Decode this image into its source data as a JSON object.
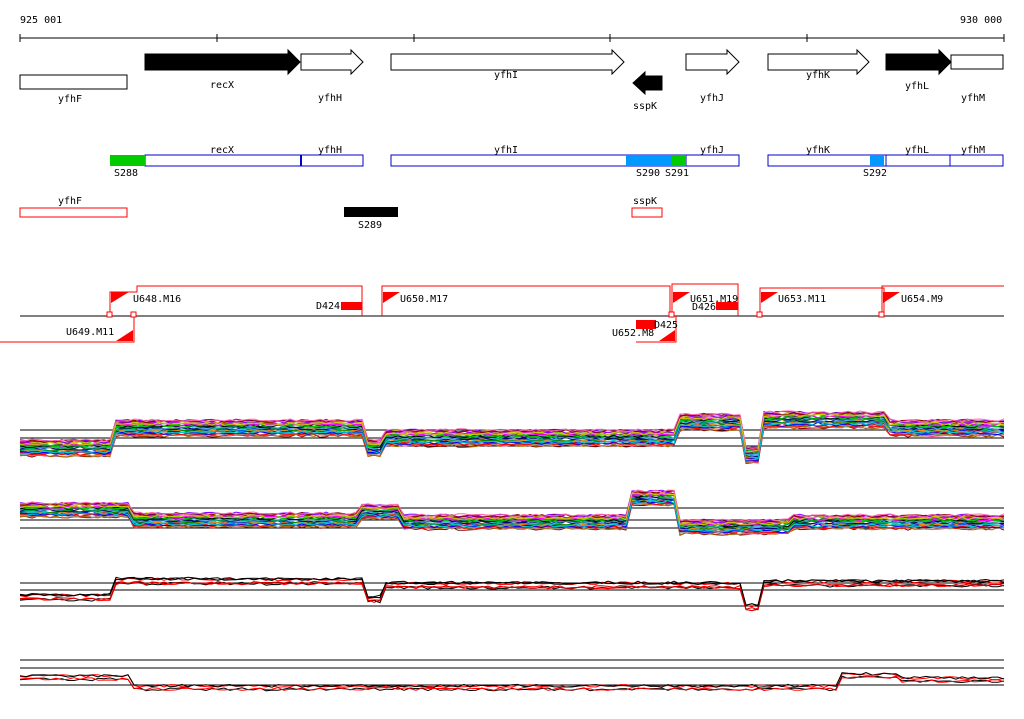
{
  "coords": {
    "start": "925 001",
    "end": "930 000"
  },
  "genes_top": [
    {
      "id": "yfhF",
      "label": "yfhF",
      "fill": "white",
      "dir": "none"
    },
    {
      "id": "recX",
      "label": "recX",
      "fill": "black",
      "dir": "right"
    },
    {
      "id": "yfhH",
      "label": "yfhH",
      "fill": "white",
      "dir": "right"
    },
    {
      "id": "yfhI",
      "label": "yfhI",
      "fill": "white",
      "dir": "right"
    },
    {
      "id": "sspK",
      "label": "sspK",
      "fill": "black",
      "dir": "left"
    },
    {
      "id": "yfhJ",
      "label": "yfhJ",
      "fill": "white",
      "dir": "right"
    },
    {
      "id": "yfhK",
      "label": "yfhK",
      "fill": "white",
      "dir": "right"
    },
    {
      "id": "yfhL",
      "label": "yfhL",
      "fill": "black",
      "dir": "right"
    },
    {
      "id": "yfhM",
      "label": "yfhM",
      "fill": "white",
      "dir": "none"
    }
  ],
  "operon_labels": [
    "recX",
    "yfhH",
    "yfhI",
    "yfhJ",
    "yfhK",
    "yfhL",
    "yfhM"
  ],
  "segments": [
    "S288",
    "S290",
    "S291",
    "S292",
    "S289"
  ],
  "red_boxes": [
    "yfhF",
    "sspK"
  ],
  "transcripts_up": [
    "U648.M16",
    "U650.M17",
    "U651.M19",
    "U653.M11",
    "U654.M9"
  ],
  "transcripts_down": [
    "U649.M11",
    "U652.M8"
  ],
  "downshifts": [
    "D424",
    "D426",
    "D425"
  ],
  "colors": {
    "operon_blue": "#0000cc",
    "segment_green": "#00cc00",
    "segment_cyan": "#0099ff",
    "transcript_red": "#ff0000",
    "gene_black": "#000000"
  }
}
